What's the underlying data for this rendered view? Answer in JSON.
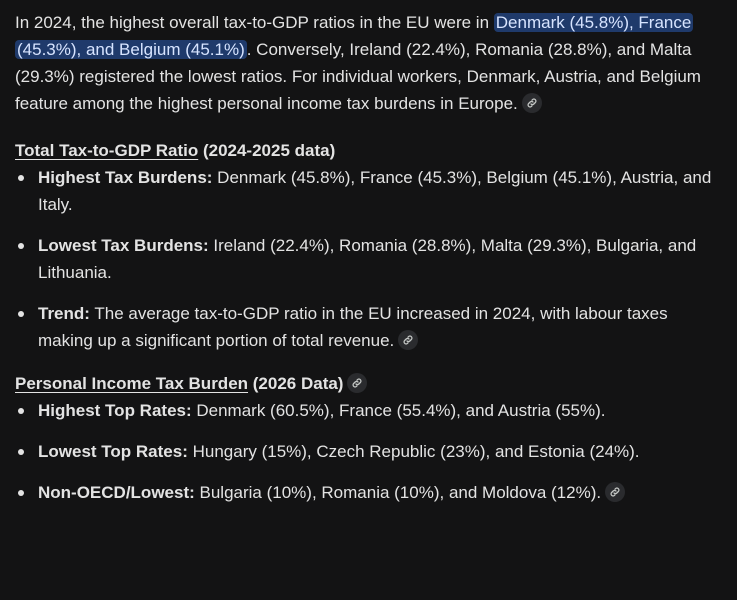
{
  "intro": {
    "lead": "In 2024, the highest overall tax-to-GDP ratios in the EU were in ",
    "highlight": "Denmark (45.8%), France (45.3%), and Belgium (45.1%)",
    "rest": ". Conversely, Ireland (22.4%), Romania (28.8%), and Malta (29.3%) registered the lowest ratios. For individual workers, Denmark, Austria, and Belgium feature among the highest personal income tax burdens in Europe."
  },
  "section1": {
    "title_underlined": "Total Tax-to-GDP Ratio",
    "title_rest": " (2024-2025 data)",
    "items": [
      {
        "label": "Highest Tax Burdens:",
        "text": " Denmark (45.8%), France (45.3%), Belgium (45.1%), Austria, and Italy."
      },
      {
        "label": "Lowest Tax Burdens:",
        "text": " Ireland (22.4%), Romania (28.8%), Malta (29.3%), Bulgaria, and Lithuania."
      },
      {
        "label": "Trend:",
        "text": " The average tax-to-GDP ratio in the EU increased in 2024, with labour taxes making up a significant portion of total revenue."
      }
    ]
  },
  "section2": {
    "title_underlined": "Personal Income Tax Burden",
    "title_rest": " (2026 Data)",
    "items": [
      {
        "label": "Highest Top Rates:",
        "text": " Denmark (60.5%), France (55.4%), and Austria (55%)."
      },
      {
        "label": "Lowest Top Rates:",
        "text": " Hungary (15%), Czech Republic (23%), and Estonia (24%)."
      },
      {
        "label": "Non-OECD/Lowest:",
        "text": " Bulgaria (10%), Romania (10%), and Moldova (12%)."
      }
    ]
  },
  "icons": {
    "source_link": "link-icon"
  },
  "colors": {
    "background": "#131314",
    "text": "#e3e3e3",
    "highlight_bg": "#1f3a6b",
    "chip_bg": "#2a2b2e"
  }
}
